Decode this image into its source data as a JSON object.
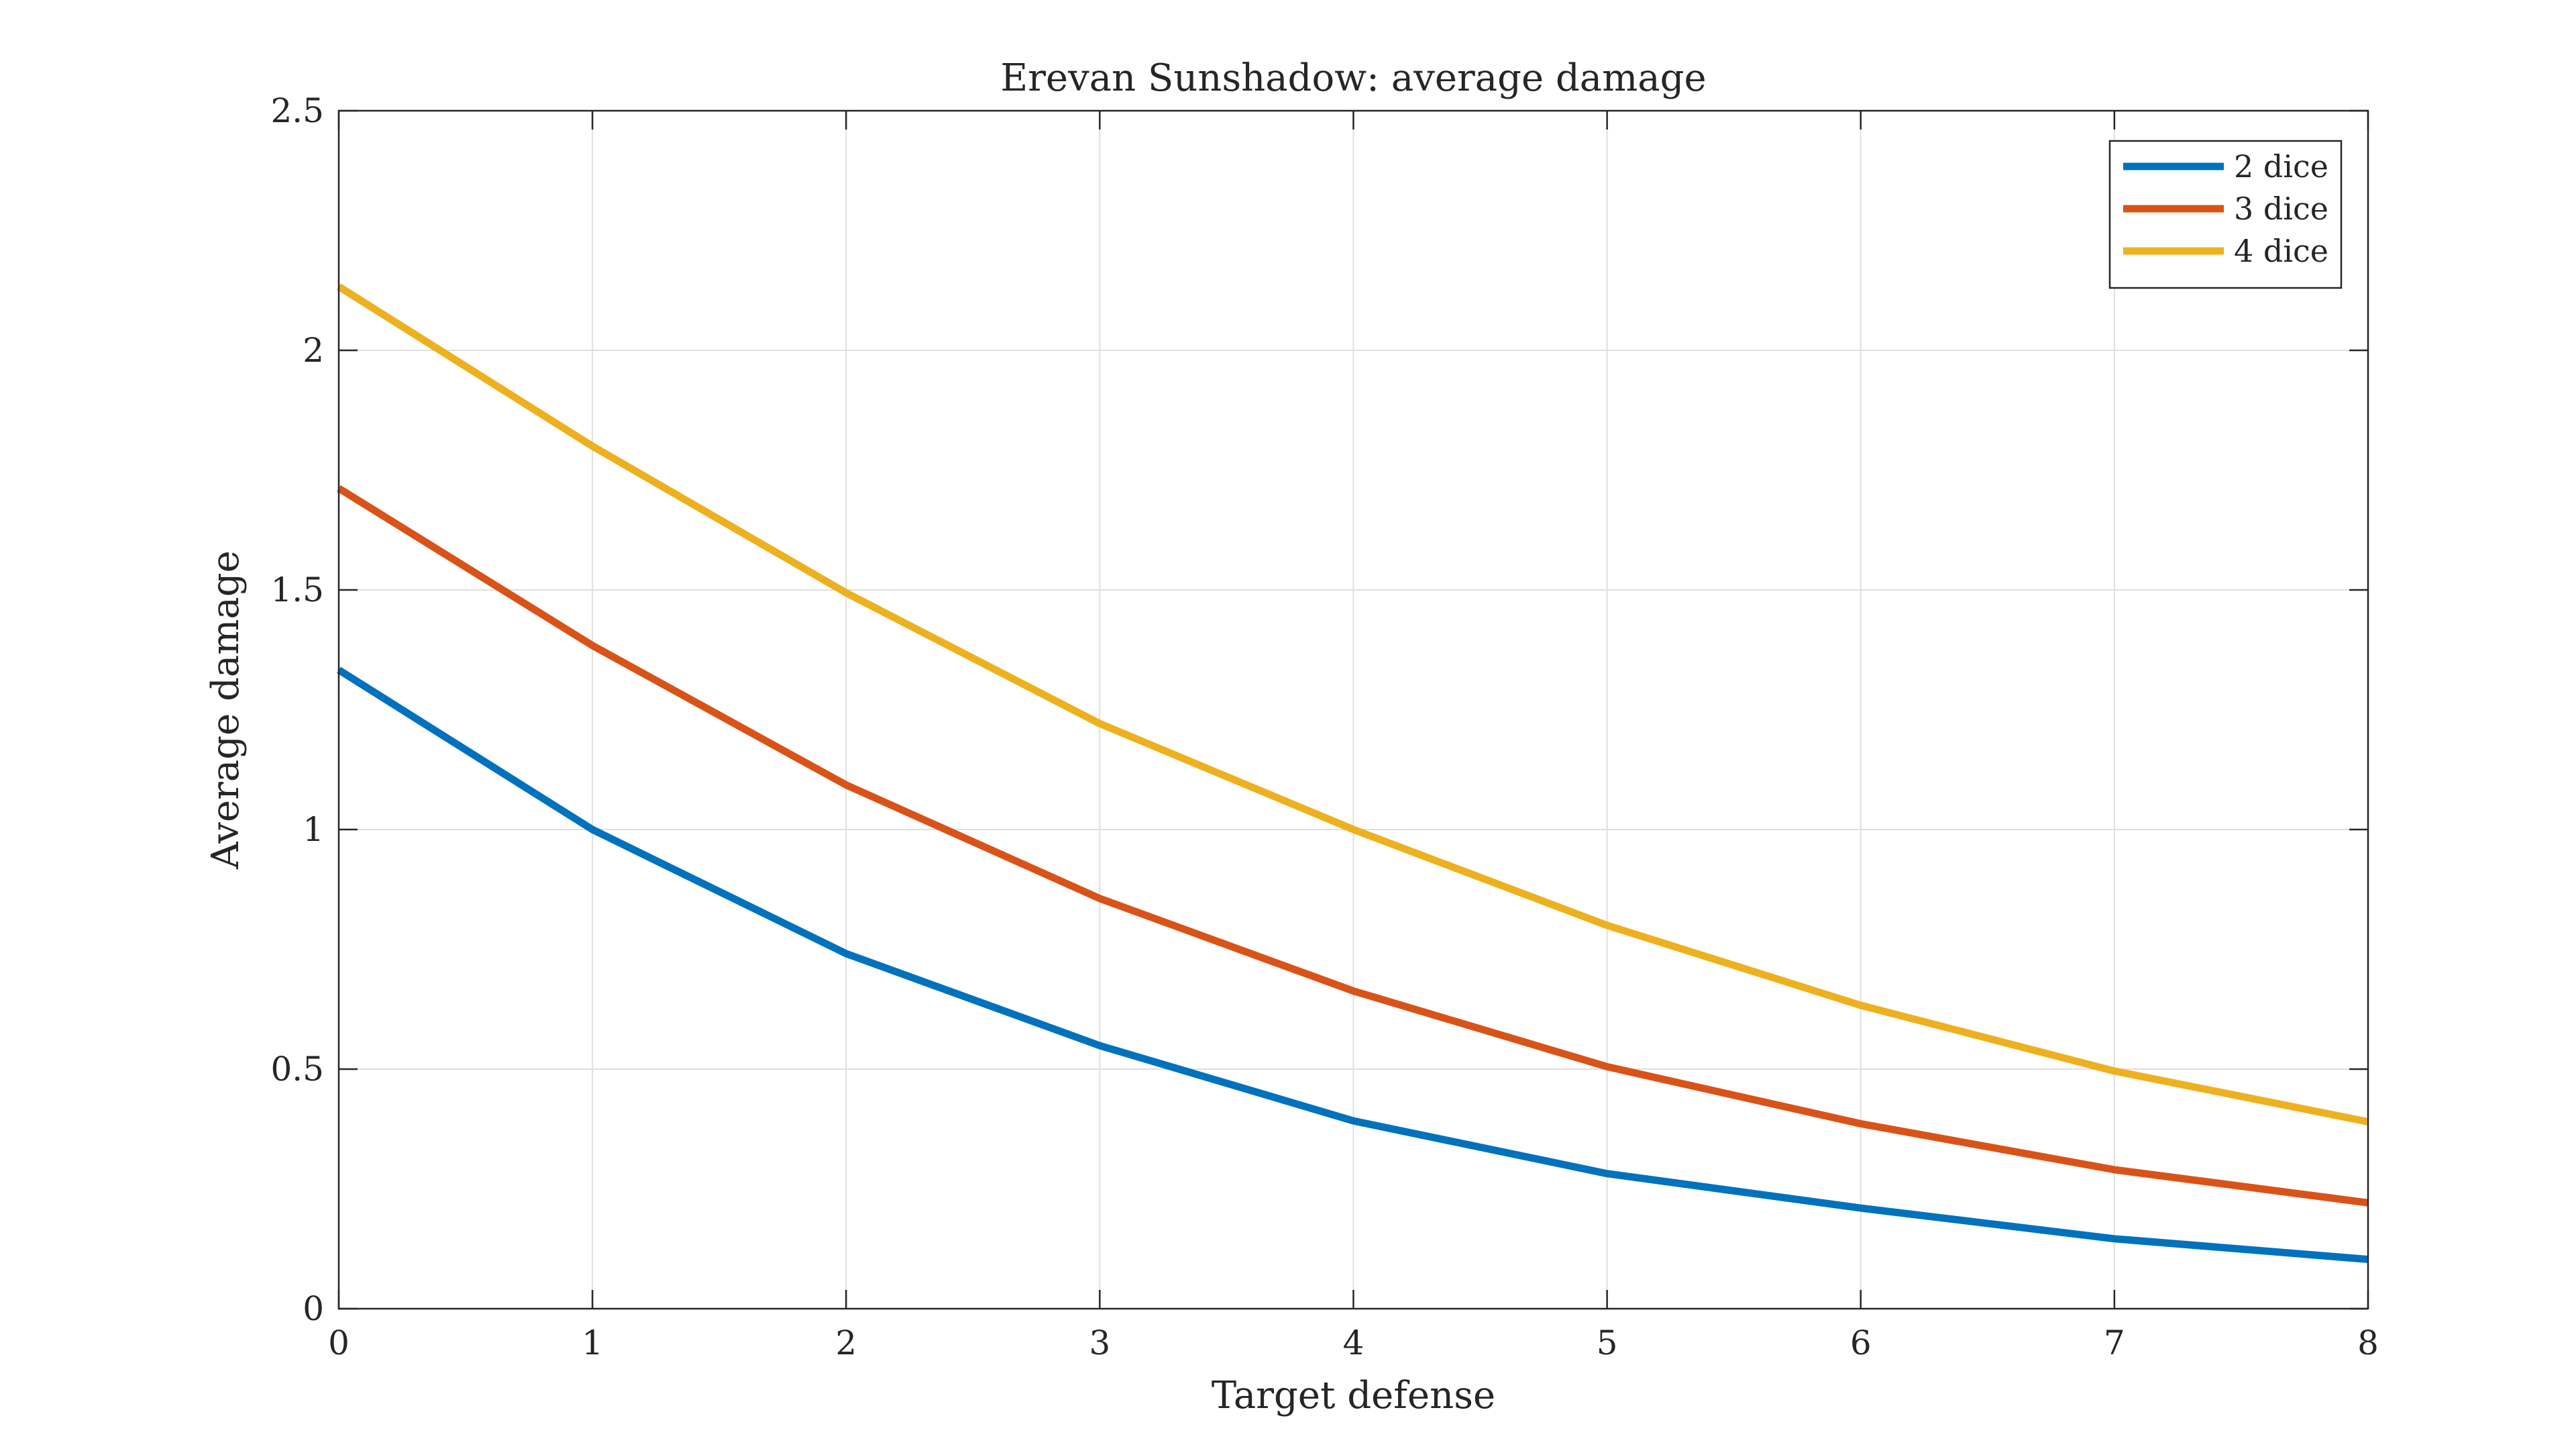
{
  "chart_data": {
    "type": "line",
    "title": "Erevan Sunshadow: average damage",
    "xlabel": "Target defense",
    "ylabel": "Average damage",
    "xlim": [
      0,
      8
    ],
    "ylim": [
      0,
      2.5
    ],
    "x": [
      0,
      1,
      2,
      3,
      4,
      5,
      6,
      7,
      8
    ],
    "xticks": [
      "0",
      "1",
      "2",
      "3",
      "4",
      "5",
      "6",
      "7",
      "8"
    ],
    "yticks": [
      "0",
      "0.5",
      "1",
      "1.5",
      "2",
      "2.5"
    ],
    "ytick_values": [
      0,
      0.5,
      1,
      1.5,
      2,
      2.5
    ],
    "grid": true,
    "legend_position": "top-right",
    "series": [
      {
        "name": "2 dice",
        "color": "#0072BD",
        "values": [
          1.333,
          1.0,
          0.741,
          0.549,
          0.392,
          0.282,
          0.21,
          0.146,
          0.103
        ]
      },
      {
        "name": "3 dice",
        "color": "#D95319",
        "values": [
          1.712,
          1.384,
          1.093,
          0.856,
          0.663,
          0.505,
          0.386,
          0.29,
          0.221
        ]
      },
      {
        "name": "4 dice",
        "color": "#EDB120",
        "values": [
          2.133,
          1.8,
          1.494,
          1.221,
          1.0,
          0.8,
          0.633,
          0.496,
          0.39
        ]
      }
    ]
  }
}
